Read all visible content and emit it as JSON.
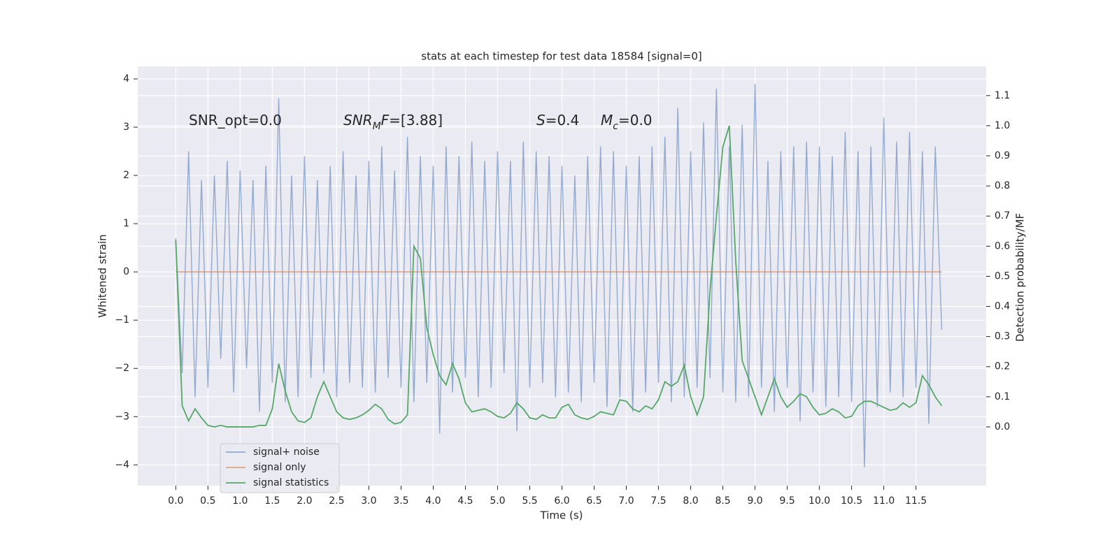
{
  "chart_data": {
    "type": "line",
    "title": "stats at each timestep for test data 18584 [signal=0]",
    "xlabel": "Time (s)",
    "ylabel": "Whitened strain",
    "y2label": "Detection probability/MF",
    "x": [
      0,
      0.1,
      0.2,
      0.3,
      0.4,
      0.5,
      0.6,
      0.7,
      0.8,
      0.9,
      1,
      1.1,
      1.2,
      1.3,
      1.4,
      1.5,
      1.6,
      1.7,
      1.8,
      1.9,
      2,
      2.1,
      2.2,
      2.3,
      2.4,
      2.5,
      2.6,
      2.7,
      2.8,
      2.9,
      3,
      3.1,
      3.2,
      3.3,
      3.4,
      3.5,
      3.6,
      3.7,
      3.8,
      3.9,
      4,
      4.1,
      4.2,
      4.3,
      4.4,
      4.5,
      4.6,
      4.7,
      4.8,
      4.9,
      5,
      5.1,
      5.2,
      5.3,
      5.4,
      5.5,
      5.6,
      5.7,
      5.8,
      5.9,
      6,
      6.1,
      6.2,
      6.3,
      6.4,
      6.5,
      6.6,
      6.7,
      6.8,
      6.9,
      7,
      7.1,
      7.2,
      7.3,
      7.4,
      7.5,
      7.6,
      7.7,
      7.8,
      7.9,
      8,
      8.1,
      8.2,
      8.3,
      8.4,
      8.5,
      8.6,
      8.7,
      8.8,
      8.9,
      9,
      9.1,
      9.2,
      9.3,
      9.4,
      9.5,
      9.6,
      9.7,
      9.8,
      9.9,
      10,
      10.1,
      10.2,
      10.3,
      10.4,
      10.5,
      10.6,
      10.7,
      10.8,
      10.9,
      11,
      11.1,
      11.2,
      11.3,
      11.4,
      11.5,
      11.6,
      11.7,
      11.8,
      11.9
    ],
    "series": [
      {
        "name": "signal+ noise",
        "color": "#4c72b0",
        "values": [
          0.7,
          -2.1,
          2.5,
          -2.6,
          1.9,
          -2.4,
          2.0,
          -1.8,
          2.3,
          -2.5,
          2.1,
          -2.0,
          1.9,
          -2.9,
          2.2,
          -2.3,
          3.6,
          -2.7,
          2.0,
          -2.6,
          2.4,
          -2.2,
          1.9,
          -2.1,
          2.2,
          -2.6,
          2.5,
          -2.3,
          2.0,
          -2.4,
          2.3,
          -2.5,
          2.6,
          -2.2,
          2.1,
          -2.4,
          2.8,
          -2.7,
          2.4,
          -2.3,
          2.2,
          -3.35,
          2.6,
          -2.5,
          2.4,
          -2.2,
          2.7,
          -2.6,
          2.3,
          -2.4,
          2.5,
          -2.1,
          2.3,
          -3.3,
          2.7,
          -2.4,
          2.5,
          -2.3,
          2.4,
          -2.6,
          2.2,
          -2.5,
          2.0,
          -2.7,
          2.4,
          -2.3,
          2.6,
          -2.8,
          2.5,
          -2.6,
          2.2,
          -2.9,
          2.4,
          -2.5,
          2.6,
          -2.3,
          2.8,
          -2.7,
          3.4,
          -2.6,
          2.5,
          -2.4,
          3.1,
          -2.2,
          3.8,
          -2.5,
          2.6,
          -2.7,
          3.05,
          -2.6,
          3.9,
          -2.4,
          2.3,
          -2.9,
          2.5,
          -2.4,
          2.6,
          -3.1,
          2.7,
          -2.5,
          2.6,
          -2.8,
          2.4,
          -2.6,
          2.9,
          -2.7,
          2.5,
          -4.05,
          2.6,
          -2.8,
          3.2,
          -2.5,
          2.7,
          -2.6,
          2.9,
          -2.4,
          2.5,
          -3.15,
          2.6,
          -1.2
        ]
      },
      {
        "name": "signal only",
        "color": "#dd8452",
        "values": [
          0,
          0,
          0,
          0,
          0,
          0,
          0,
          0,
          0,
          0,
          0,
          0,
          0,
          0,
          0,
          0,
          0,
          0,
          0,
          0,
          0,
          0,
          0,
          0,
          0,
          0,
          0,
          0,
          0,
          0,
          0,
          0,
          0,
          0,
          0,
          0,
          0,
          0,
          0,
          0,
          0,
          0,
          0,
          0,
          0,
          0,
          0,
          0,
          0,
          0,
          0,
          0,
          0,
          0,
          0,
          0,
          0,
          0,
          0,
          0,
          0,
          0,
          0,
          0,
          0,
          0,
          0,
          0,
          0,
          0,
          0,
          0,
          0,
          0,
          0,
          0,
          0,
          0,
          0,
          0,
          0,
          0,
          0,
          0,
          0,
          0,
          0,
          0,
          0,
          0,
          0,
          0,
          0,
          0,
          0,
          0,
          0,
          0,
          0,
          0,
          0,
          0,
          0,
          0,
          0,
          0,
          0,
          0,
          0,
          0,
          0,
          0,
          0,
          0,
          0,
          0,
          0,
          0,
          0,
          0
        ]
      },
      {
        "name": "signal statistics",
        "color": "#55a868",
        "axis": "y2",
        "values": [
          0.62,
          0.07,
          0.02,
          0.06,
          0.03,
          0.005,
          0,
          0.005,
          0,
          0,
          0,
          0,
          0,
          0.005,
          0.005,
          0.06,
          0.21,
          0.12,
          0.05,
          0.02,
          0.015,
          0.03,
          0.1,
          0.15,
          0.1,
          0.05,
          0.03,
          0.025,
          0.03,
          0.04,
          0.055,
          0.075,
          0.06,
          0.025,
          0.01,
          0.015,
          0.04,
          0.6,
          0.56,
          0.33,
          0.24,
          0.17,
          0.14,
          0.21,
          0.16,
          0.08,
          0.05,
          0.055,
          0.06,
          0.05,
          0.035,
          0.03,
          0.045,
          0.08,
          0.06,
          0.03,
          0.025,
          0.04,
          0.03,
          0.03,
          0.065,
          0.075,
          0.04,
          0.03,
          0.025,
          0.035,
          0.05,
          0.045,
          0.04,
          0.09,
          0.085,
          0.06,
          0.05,
          0.07,
          0.06,
          0.09,
          0.15,
          0.135,
          0.15,
          0.205,
          0.1,
          0.04,
          0.1,
          0.45,
          0.7,
          0.93,
          1.0,
          0.55,
          0.22,
          0.16,
          0.1,
          0.04,
          0.1,
          0.16,
          0.1,
          0.065,
          0.085,
          0.11,
          0.1,
          0.065,
          0.04,
          0.045,
          0.06,
          0.05,
          0.03,
          0.035,
          0.07,
          0.085,
          0.085,
          0.075,
          0.065,
          0.055,
          0.06,
          0.08,
          0.065,
          0.08,
          0.17,
          0.14,
          0.1,
          0.07
        ]
      }
    ],
    "xlim": [
      -0.59,
      12.59
    ],
    "xticks": [
      {
        "value": 0,
        "label": "0.0"
      },
      0.5,
      {
        "value": 1,
        "label": "1.0"
      },
      1.5,
      {
        "value": 2,
        "label": "2.0"
      },
      2.5,
      {
        "value": 3,
        "label": "3.0"
      },
      3.5,
      {
        "value": 4,
        "label": "4.0"
      },
      4.5,
      {
        "value": 5,
        "label": "5.0"
      },
      5.5,
      {
        "value": 6,
        "label": "6.0"
      },
      6.5,
      {
        "value": 7,
        "label": "7.0"
      },
      7.5,
      {
        "value": 8,
        "label": "8.0"
      },
      8.5,
      {
        "value": 9,
        "label": "9.0"
      },
      9.5,
      {
        "value": 10,
        "label": "10.0"
      },
      10.5,
      {
        "value": 11,
        "label": "11.0"
      },
      11.5
    ],
    "ylim": [
      -4.43,
      4.26
    ],
    "yticks": [
      {
        "value": -4,
        "label": "−4"
      },
      {
        "value": -3,
        "label": "−3"
      },
      {
        "value": -2,
        "label": "−2"
      },
      {
        "value": -1,
        "label": "−1"
      },
      0,
      1,
      2,
      3,
      4
    ],
    "y2lim": [
      -0.195,
      1.197
    ],
    "y2ticks": [
      {
        "value": 0,
        "label": "0.0"
      },
      0.1,
      0.2,
      0.3,
      0.4,
      0.5,
      0.6,
      0.7,
      0.8,
      0.9,
      {
        "value": 1,
        "label": "1.0"
      },
      1.1
    ],
    "grid": true,
    "legend": "lower left",
    "annotations": [
      {
        "parts": [
          {
            "text": "SNR_opt=0.0"
          }
        ]
      },
      {
        "parts": [
          {
            "text": "SNR",
            "italic": true
          },
          {
            "text": "M",
            "italic": true,
            "sub": true
          },
          {
            "text": "F",
            "italic": true
          },
          {
            "text": "=[3.88]"
          }
        ]
      },
      {
        "parts": [
          {
            "text": "S",
            "italic": true
          },
          {
            "text": "=0.4"
          }
        ]
      },
      {
        "parts": [
          {
            "text": "M",
            "italic": true
          },
          {
            "text": "c",
            "italic": true,
            "sub": true
          },
          {
            "text": "=0.0"
          }
        ]
      }
    ]
  }
}
